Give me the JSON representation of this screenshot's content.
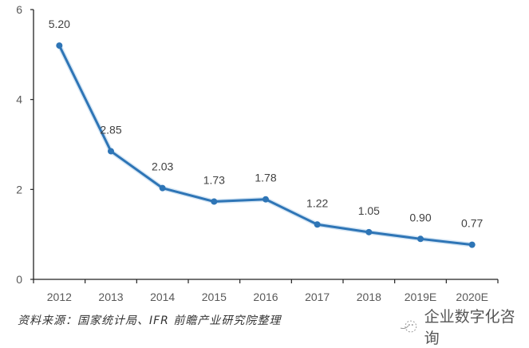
{
  "chart_data": {
    "type": "line",
    "title": "",
    "xlabel": "",
    "ylabel": "",
    "categories": [
      "2012",
      "2013",
      "2014",
      "2015",
      "2016",
      "2017",
      "2018",
      "2019E",
      "2020E"
    ],
    "series": [
      {
        "name": "value",
        "values": [
          5.2,
          2.85,
          2.03,
          1.73,
          1.78,
          1.22,
          1.05,
          0.9,
          0.77
        ],
        "labels": [
          "5.20",
          "2.85",
          "2.03",
          "1.73",
          "1.78",
          "1.22",
          "1.05",
          "0.90",
          "0.77"
        ],
        "color": "#2E75B6"
      }
    ],
    "ylim": [
      0,
      6
    ],
    "yticks": [
      "0",
      "2",
      "4",
      "6"
    ],
    "grid": false,
    "legend": "none"
  },
  "footer": {
    "source": "资料来源：国家统计局、IFR 前瞻产业研究院整理",
    "watermark": "企业数字化咨询"
  }
}
